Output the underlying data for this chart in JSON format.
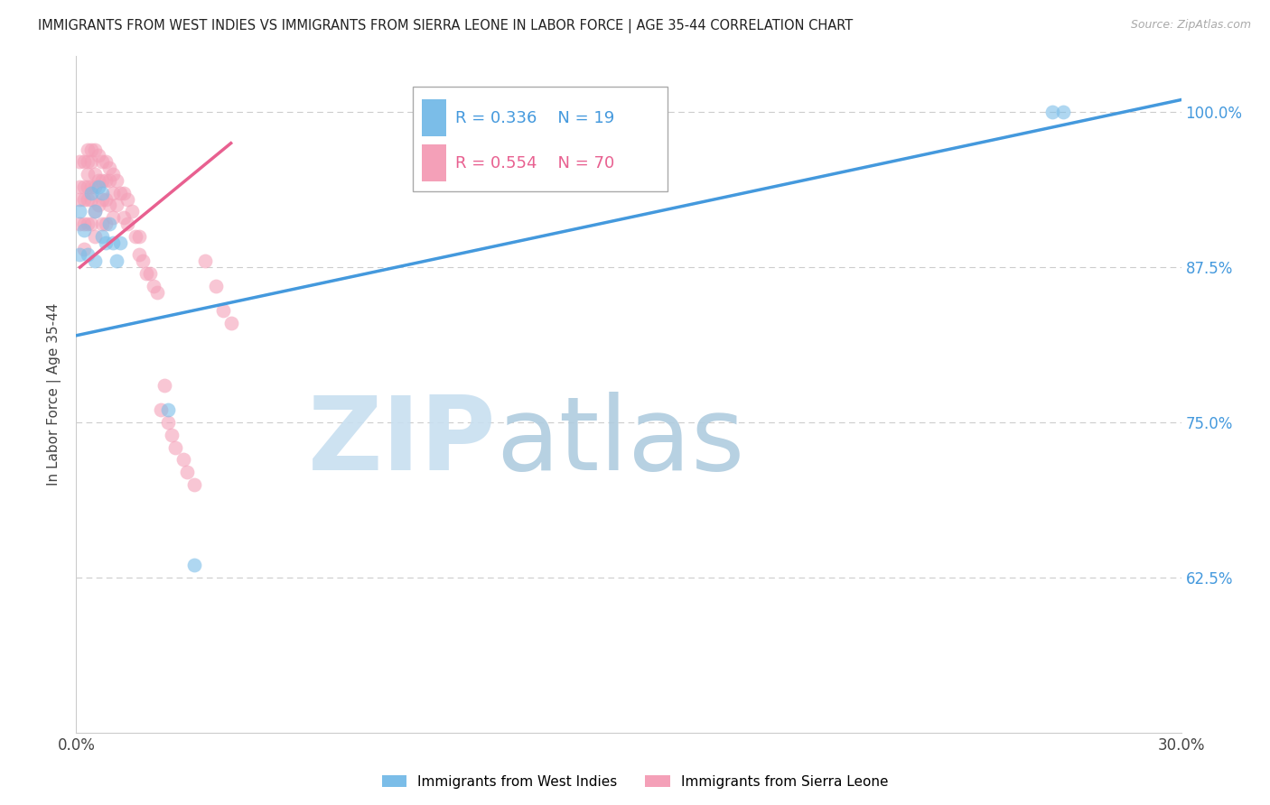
{
  "title": "IMMIGRANTS FROM WEST INDIES VS IMMIGRANTS FROM SIERRA LEONE IN LABOR FORCE | AGE 35-44 CORRELATION CHART",
  "source": "Source: ZipAtlas.com",
  "ylabel_label": "In Labor Force | Age 35-44",
  "xlim": [
    0.0,
    0.3
  ],
  "ylim": [
    0.5,
    1.045
  ],
  "xtick_positions": [
    0.0,
    0.05,
    0.1,
    0.15,
    0.2,
    0.25,
    0.3
  ],
  "xticklabels": [
    "0.0%",
    "",
    "",
    "",
    "",
    "",
    "30.0%"
  ],
  "ytick_positions": [
    0.625,
    0.75,
    0.875,
    1.0
  ],
  "yticklabels": [
    "62.5%",
    "75.0%",
    "87.5%",
    "100.0%"
  ],
  "color_blue": "#7bbde8",
  "color_pink": "#f4a0b8",
  "line_blue": "#4499dd",
  "line_pink": "#e86090",
  "legend1_label": "Immigrants from West Indies",
  "legend2_label": "Immigrants from Sierra Leone",
  "west_indies_x": [
    0.001,
    0.001,
    0.002,
    0.003,
    0.004,
    0.005,
    0.005,
    0.006,
    0.007,
    0.007,
    0.008,
    0.009,
    0.01,
    0.011,
    0.012,
    0.025,
    0.032,
    0.265,
    0.268
  ],
  "west_indies_y": [
    0.885,
    0.92,
    0.905,
    0.885,
    0.935,
    0.88,
    0.92,
    0.94,
    0.9,
    0.935,
    0.895,
    0.91,
    0.895,
    0.88,
    0.895,
    0.76,
    0.635,
    1.0,
    1.0
  ],
  "sierra_leone_x": [
    0.001,
    0.001,
    0.001,
    0.001,
    0.002,
    0.002,
    0.002,
    0.002,
    0.002,
    0.003,
    0.003,
    0.003,
    0.003,
    0.003,
    0.003,
    0.004,
    0.004,
    0.004,
    0.004,
    0.004,
    0.005,
    0.005,
    0.005,
    0.005,
    0.005,
    0.006,
    0.006,
    0.006,
    0.007,
    0.007,
    0.007,
    0.007,
    0.008,
    0.008,
    0.008,
    0.008,
    0.009,
    0.009,
    0.009,
    0.01,
    0.01,
    0.01,
    0.011,
    0.011,
    0.012,
    0.013,
    0.013,
    0.014,
    0.014,
    0.015,
    0.016,
    0.017,
    0.017,
    0.018,
    0.019,
    0.02,
    0.021,
    0.022,
    0.023,
    0.024,
    0.025,
    0.026,
    0.027,
    0.029,
    0.03,
    0.032,
    0.035,
    0.038,
    0.04,
    0.042
  ],
  "sierra_leone_y": [
    0.96,
    0.94,
    0.93,
    0.91,
    0.96,
    0.94,
    0.93,
    0.91,
    0.89,
    0.97,
    0.96,
    0.95,
    0.94,
    0.93,
    0.91,
    0.97,
    0.96,
    0.94,
    0.93,
    0.91,
    0.97,
    0.95,
    0.94,
    0.92,
    0.9,
    0.965,
    0.945,
    0.925,
    0.96,
    0.945,
    0.93,
    0.91,
    0.96,
    0.945,
    0.93,
    0.91,
    0.955,
    0.945,
    0.925,
    0.95,
    0.935,
    0.915,
    0.945,
    0.925,
    0.935,
    0.935,
    0.915,
    0.93,
    0.91,
    0.92,
    0.9,
    0.9,
    0.885,
    0.88,
    0.87,
    0.87,
    0.86,
    0.855,
    0.76,
    0.78,
    0.75,
    0.74,
    0.73,
    0.72,
    0.71,
    0.7,
    0.88,
    0.86,
    0.84,
    0.83
  ],
  "blue_line_x0": 0.0,
  "blue_line_x1": 0.3,
  "blue_line_y0": 0.82,
  "blue_line_y1": 1.01,
  "pink_line_x0": 0.001,
  "pink_line_x1": 0.042,
  "pink_line_y0": 0.875,
  "pink_line_y1": 0.975,
  "watermark_zip_color": "#c8dff0",
  "watermark_atlas_color": "#b0ccdf",
  "legend_r1": "R = 0.336",
  "legend_n1": "N = 19",
  "legend_r2": "R = 0.554",
  "legend_n2": "N = 70",
  "legend_text_color": "#4499dd",
  "legend_pink_text_color": "#e86090"
}
